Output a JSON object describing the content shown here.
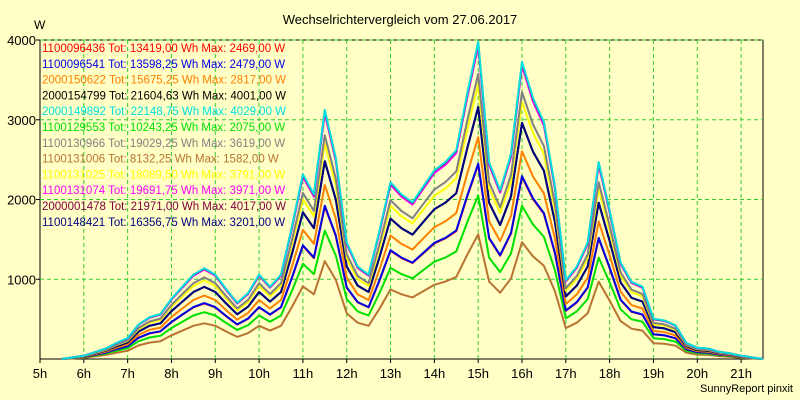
{
  "chart_data": {
    "type": "line",
    "title": "Wechselrichtervergleich vom 27.06.2017",
    "ylabel": "W",
    "xlabel": "",
    "footer": "SunnyReport pinxit",
    "ylim": [
      0,
      4000
    ],
    "xlim": [
      5,
      21.5
    ],
    "grid": true,
    "legend_position": "top-left",
    "x_ticks": [
      5,
      6,
      7,
      8,
      9,
      10,
      11,
      12,
      13,
      14,
      15,
      16,
      17,
      18,
      19,
      20,
      21
    ],
    "x_tick_labels": [
      "5h",
      "6h",
      "7h",
      "8h",
      "9h",
      "10h",
      "11h",
      "12h",
      "13h",
      "14h",
      "15h",
      "16h",
      "17h",
      "18h",
      "19h",
      "20h",
      "21h"
    ],
    "y_ticks": [
      1000,
      2000,
      3000,
      4000
    ],
    "y_tick_labels": [
      "1000",
      "2000",
      "3000",
      "4000"
    ],
    "x": [
      5.5,
      6.0,
      6.5,
      6.75,
      7.0,
      7.25,
      7.5,
      7.75,
      8.0,
      8.25,
      8.5,
      8.75,
      9.0,
      9.25,
      9.5,
      9.75,
      10.0,
      10.25,
      10.5,
      10.75,
      11.0,
      11.25,
      11.5,
      11.75,
      12.0,
      12.25,
      12.5,
      12.75,
      13.0,
      13.25,
      13.5,
      13.75,
      14.0,
      14.25,
      14.5,
      14.75,
      15.0,
      15.25,
      15.5,
      15.75,
      16.0,
      16.25,
      16.5,
      16.75,
      17.0,
      17.25,
      17.5,
      17.75,
      18.0,
      18.25,
      18.5,
      18.75,
      19.0,
      19.25,
      19.5,
      19.75,
      20.0,
      20.25,
      20.5,
      20.75,
      21.0,
      21.5
    ],
    "series": [
      {
        "name": "1100096436",
        "legend": "1100096436 Tot: 13419,00 Wh Max: 2469,00 W",
        "color": "#ff0000",
        "scale": 0.617
      },
      {
        "name": "1100096541",
        "legend": "1100096541 Tot: 13598,25 Wh Max: 2479,00 W",
        "color": "#0000e6",
        "scale": 0.62
      },
      {
        "name": "2000150622",
        "legend": "2000150622 Tot: 15675,25 Wh Max: 2817,00 W",
        "color": "#ff8000",
        "scale": 0.704
      },
      {
        "name": "2000154799",
        "legend": "2000154799 Tot: 21604,63 Wh Max: 4001,00 W",
        "color": "#000000",
        "scale": 0.8
      },
      {
        "name": "2000149892",
        "legend": "2000149892 Tot: 22148,75 Wh Max: 4029,00 W",
        "color": "#00e0e0",
        "scale": 1.007
      },
      {
        "name": "1100129553",
        "legend": "1100129553 Tot: 10243,25 Wh Max: 2075,00 W",
        "color": "#00e000",
        "scale": 0.519
      },
      {
        "name": "1100130966",
        "legend": "1100130966 Tot: 19029,25 Wh Max: 3619,00 W",
        "color": "#808080",
        "scale": 0.905
      },
      {
        "name": "1100131006",
        "legend": "1100131006 Tot: 8132,25 Wh Max: 1582,00 W",
        "color": "#b87333",
        "scale": 0.396
      },
      {
        "name": "1100131025",
        "legend": "1100131025 Tot: 18089,50 Wh Max: 3791,00 W",
        "color": "#ffff00",
        "scale": 0.872
      },
      {
        "name": "1100131074",
        "legend": "1100131074 Tot: 19691,75 Wh Max: 3971,00 W",
        "color": "#ff00ff",
        "scale": 0.993
      },
      {
        "name": "2000001478",
        "legend": "2000001478 Tot: 21971,00 Wh Max: 4017,00 W",
        "color": "#800040",
        "scale": 1.004
      },
      {
        "name": "1100148421",
        "legend": "1100148421 Tot: 16356,75 Wh Max: 3201,00 W",
        "color": "#000080",
        "scale": 0.8
      }
    ],
    "profile": [
      0,
      40,
      130,
      200,
      260,
      430,
      520,
      560,
      750,
      900,
      1050,
      1130,
      1050,
      870,
      700,
      820,
      1050,
      900,
      1050,
      1650,
      2300,
      2050,
      3100,
      2500,
      1450,
      1150,
      1050,
      1600,
      2200,
      2050,
      1950,
      2150,
      2350,
      2450,
      2600,
      3300,
      3950,
      2450,
      2100,
      2550,
      3700,
      3250,
      2950,
      2150,
      980,
      1150,
      1450,
      2450,
      1850,
      1200,
      960,
      900,
      500,
      480,
      420,
      200,
      140,
      130,
      90,
      70,
      40,
      0
    ]
  }
}
